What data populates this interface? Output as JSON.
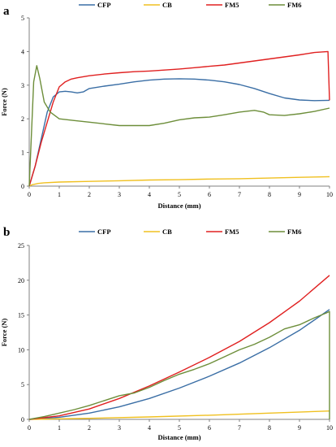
{
  "chart_data": [
    {
      "panel_label": "a",
      "type": "line",
      "xlabel": "Distance (mm)",
      "ylabel": "Force (N)",
      "xlim": [
        0,
        10
      ],
      "ylim": [
        0,
        5
      ],
      "xticks": [
        0,
        1,
        2,
        3,
        4,
        5,
        6,
        7,
        8,
        9,
        10
      ],
      "yticks": [
        0,
        1,
        2,
        3,
        4,
        5
      ],
      "legend_position": "top",
      "grid": false,
      "series": [
        {
          "name": "CFP",
          "color": "#3a6ea5",
          "x": [
            0,
            0.2,
            0.4,
            0.6,
            0.8,
            1.0,
            1.2,
            1.4,
            1.6,
            1.8,
            2.0,
            2.5,
            3.0,
            3.5,
            4.0,
            4.5,
            5.0,
            5.5,
            6.0,
            6.5,
            7.0,
            7.5,
            8.0,
            8.5,
            9.0,
            9.5,
            10.0
          ],
          "y": [
            0,
            0.6,
            1.4,
            2.2,
            2.65,
            2.8,
            2.82,
            2.8,
            2.77,
            2.8,
            2.9,
            2.97,
            3.03,
            3.1,
            3.15,
            3.18,
            3.19,
            3.18,
            3.15,
            3.1,
            3.02,
            2.9,
            2.75,
            2.62,
            2.56,
            2.54,
            2.55
          ]
        },
        {
          "name": "CB",
          "color": "#f0c020",
          "x": [
            0,
            0.1,
            0.3,
            0.5,
            1,
            2,
            3,
            4,
            5,
            6,
            7,
            8,
            9,
            10
          ],
          "y": [
            0,
            0.04,
            0.08,
            0.1,
            0.12,
            0.14,
            0.16,
            0.18,
            0.19,
            0.21,
            0.22,
            0.24,
            0.26,
            0.28
          ]
        },
        {
          "name": "FM5",
          "color": "#e02020",
          "x": [
            0,
            0.2,
            0.4,
            0.6,
            0.8,
            1.0,
            1.2,
            1.4,
            1.6,
            1.8,
            2.0,
            2.5,
            3.0,
            3.5,
            4.0,
            4.5,
            5.0,
            5.5,
            6.0,
            6.5,
            7.0,
            7.5,
            8.0,
            8.5,
            9.0,
            9.5,
            9.95,
            10.0
          ],
          "y": [
            0,
            0.6,
            1.3,
            1.9,
            2.5,
            2.95,
            3.1,
            3.18,
            3.22,
            3.25,
            3.28,
            3.33,
            3.37,
            3.4,
            3.42,
            3.45,
            3.48,
            3.52,
            3.56,
            3.6,
            3.66,
            3.72,
            3.78,
            3.84,
            3.9,
            3.97,
            4.0,
            2.55
          ]
        },
        {
          "name": "FM6",
          "color": "#6d8e3a",
          "x": [
            0,
            0.15,
            0.25,
            0.35,
            0.5,
            0.7,
            1.0,
            1.5,
            2.0,
            2.5,
            3.0,
            3.5,
            4.0,
            4.5,
            5.0,
            5.5,
            6.0,
            6.5,
            7.0,
            7.5,
            7.8,
            8.0,
            8.5,
            9.0,
            9.5,
            10.0
          ],
          "y": [
            0,
            3.1,
            3.58,
            3.2,
            2.5,
            2.2,
            2.0,
            1.95,
            1.9,
            1.85,
            1.8,
            1.8,
            1.8,
            1.87,
            1.97,
            2.03,
            2.05,
            2.12,
            2.2,
            2.25,
            2.2,
            2.12,
            2.1,
            2.15,
            2.22,
            2.32
          ]
        }
      ]
    },
    {
      "panel_label": "b",
      "type": "line",
      "xlabel": "Distance (mm)",
      "ylabel": "Force (N)",
      "xlim": [
        0,
        10
      ],
      "ylim": [
        0,
        25
      ],
      "xticks": [
        0,
        1,
        2,
        3,
        4,
        5,
        6,
        7,
        8,
        9,
        10
      ],
      "yticks": [
        0,
        5,
        10,
        15,
        20,
        25
      ],
      "legend_position": "top",
      "grid": false,
      "series": [
        {
          "name": "CFP",
          "color": "#3a6ea5",
          "x": [
            0,
            1,
            2,
            3,
            4,
            5,
            6,
            7,
            8,
            9,
            10
          ],
          "y": [
            0,
            0.3,
            0.9,
            1.8,
            3.0,
            4.5,
            6.2,
            8.1,
            10.3,
            12.8,
            15.8
          ]
        },
        {
          "name": "CB",
          "color": "#f0c020",
          "x": [
            0,
            2,
            4,
            6,
            8,
            10
          ],
          "y": [
            0,
            0.15,
            0.35,
            0.6,
            0.9,
            1.2
          ]
        },
        {
          "name": "FM5",
          "color": "#e02020",
          "x": [
            0,
            1,
            2,
            3,
            4,
            5,
            6,
            7,
            8,
            9,
            10
          ],
          "y": [
            0,
            0.5,
            1.5,
            3.0,
            4.8,
            6.8,
            8.9,
            11.2,
            13.9,
            17.0,
            20.7
          ]
        },
        {
          "name": "FM6",
          "color": "#6d8e3a",
          "x": [
            0,
            0.5,
            1,
            1.5,
            2,
            2.5,
            3,
            3.5,
            4,
            4.5,
            5,
            5.5,
            6,
            6.5,
            7,
            7.5,
            8,
            8.5,
            9,
            9.5,
            9.9,
            10,
            10
          ],
          "y": [
            0,
            0.4,
            0.9,
            1.4,
            2.0,
            2.7,
            3.4,
            3.8,
            4.6,
            5.6,
            6.5,
            7.2,
            8.0,
            9.0,
            10.0,
            10.8,
            11.8,
            13.0,
            13.6,
            14.6,
            15.3,
            15.5,
            0
          ]
        }
      ]
    }
  ]
}
